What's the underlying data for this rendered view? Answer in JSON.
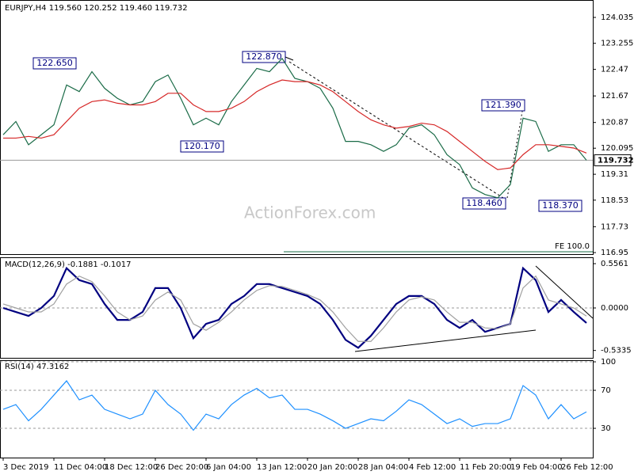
{
  "chart_data": [
    {
      "type": "line",
      "title": "EURJPY,H4  119.560 120.252 119.460 119.732",
      "x": [
        0,
        1,
        2,
        3,
        4,
        5,
        6,
        7,
        8,
        9,
        10,
        11,
        12,
        13,
        14,
        15,
        16,
        17,
        18,
        19,
        20,
        21,
        22,
        23,
        24,
        25,
        26,
        27,
        28,
        29,
        30,
        31,
        32,
        33,
        34,
        35,
        36,
        37,
        38,
        39,
        40,
        41,
        42,
        43,
        44,
        45,
        46
      ],
      "xlim": [
        -0.25,
        46.5
      ],
      "xticks": [
        {
          "value": 0,
          "label": "3 Dec 2019"
        },
        {
          "value": 4,
          "label": "11 Dec 04:00"
        },
        {
          "value": 8,
          "label": "18 Dec 12:00"
        },
        {
          "value": 12,
          "label": "26 Dec 20:00"
        },
        {
          "value": 16,
          "label": "6 Jan 04:00"
        },
        {
          "value": 20,
          "label": "13 Jan 12:00"
        },
        {
          "value": 24,
          "label": "20 Jan 20:00"
        },
        {
          "value": 28,
          "label": "28 Jan 04:00"
        },
        {
          "value": 32,
          "label": "4 Feb 12:00"
        },
        {
          "value": 36,
          "label": "11 Feb 20:00"
        },
        {
          "value": 40,
          "label": "19 Feb 04:00"
        },
        {
          "value": 44,
          "label": "26 Feb 12:00"
        }
      ],
      "ylim": [
        116.88,
        124.56
      ],
      "yticks": [
        124.035,
        123.255,
        122.47,
        121.67,
        120.87,
        120.095,
        119.31,
        118.53,
        117.73,
        116.95
      ],
      "grid": false,
      "series": [
        {
          "color": "#1a6b47",
          "values": [
            120.5,
            120.9,
            120.2,
            120.5,
            120.8,
            122.0,
            121.8,
            122.4,
            121.9,
            121.6,
            121.4,
            121.5,
            122.1,
            122.3,
            121.6,
            120.8,
            121.0,
            120.8,
            121.5,
            122.0,
            122.5,
            122.4,
            122.8,
            122.2,
            122.1,
            121.9,
            121.3,
            120.3,
            120.3,
            120.2,
            120.0,
            120.2,
            120.7,
            120.8,
            120.5,
            119.9,
            119.6,
            118.9,
            118.7,
            118.6,
            119.0,
            121.0,
            120.9,
            120.0,
            120.2,
            120.2,
            119.732
          ]
        },
        {
          "color": "#d62828",
          "values": [
            120.4,
            120.4,
            120.45,
            120.4,
            120.5,
            120.9,
            121.3,
            121.5,
            121.55,
            121.45,
            121.4,
            121.4,
            121.5,
            121.75,
            121.75,
            121.4,
            121.2,
            121.2,
            121.3,
            121.5,
            121.8,
            122.0,
            122.15,
            122.1,
            122.1,
            122.0,
            121.8,
            121.5,
            121.2,
            120.95,
            120.8,
            120.7,
            120.75,
            120.85,
            120.8,
            120.6,
            120.3,
            120.0,
            119.7,
            119.45,
            119.5,
            119.9,
            120.2,
            120.2,
            120.15,
            120.1,
            119.95
          ]
        }
      ],
      "last_price": 119.732,
      "last_price_label": "119.732",
      "annotations": [
        "122.650",
        "122.870",
        "120.170",
        "121.390",
        "118.460",
        "118.370"
      ],
      "level_label": "FE 100.0",
      "watermark": "ActionForex.com"
    },
    {
      "type": "line",
      "title": "MACD(12,26,9) -0.1881 -0.1017",
      "ylim": [
        -0.626,
        0.636
      ],
      "yticks": [
        0.5561,
        {
          "value": 0,
          "label": "0.0000"
        },
        -0.5335
      ],
      "zero_line": true,
      "series": [
        {
          "color": "#000080",
          "values": [
            0.0,
            -0.05,
            -0.1,
            0.0,
            0.15,
            0.5,
            0.35,
            0.3,
            0.05,
            -0.15,
            -0.15,
            -0.05,
            0.25,
            0.25,
            0.0,
            -0.38,
            -0.2,
            -0.15,
            0.05,
            0.15,
            0.3,
            0.3,
            0.25,
            0.2,
            0.15,
            0.05,
            -0.15,
            -0.4,
            -0.5,
            -0.35,
            -0.15,
            0.05,
            0.15,
            0.15,
            0.05,
            -0.15,
            -0.25,
            -0.15,
            -0.3,
            -0.25,
            -0.2,
            0.5,
            0.35,
            -0.05,
            0.1,
            -0.05,
            -0.1881
          ]
        },
        {
          "color": "#a0a0a0",
          "values": [
            0.05,
            0.0,
            -0.05,
            -0.05,
            0.05,
            0.3,
            0.4,
            0.33,
            0.15,
            -0.05,
            -0.15,
            -0.1,
            0.1,
            0.2,
            0.1,
            -0.2,
            -0.28,
            -0.18,
            -0.05,
            0.1,
            0.22,
            0.28,
            0.27,
            0.22,
            0.17,
            0.1,
            -0.05,
            -0.25,
            -0.42,
            -0.42,
            -0.25,
            -0.05,
            0.1,
            0.14,
            0.1,
            -0.05,
            -0.18,
            -0.18,
            -0.25,
            -0.26,
            -0.2,
            0.25,
            0.4,
            0.1,
            0.05,
            0.0,
            -0.1017
          ]
        }
      ]
    },
    {
      "type": "line",
      "title": "RSI(14) 47.3162",
      "ylim": [
        -0.8,
        101.7
      ],
      "yticks": [
        100,
        70,
        30
      ],
      "grid": true,
      "series": [
        {
          "color": "#1e90ff",
          "values": [
            50,
            55,
            38,
            50,
            65,
            80,
            60,
            65,
            50,
            45,
            40,
            45,
            70,
            55,
            45,
            28,
            45,
            40,
            55,
            65,
            72,
            62,
            65,
            50,
            50,
            45,
            38,
            30,
            35,
            40,
            38,
            48,
            60,
            55,
            45,
            35,
            40,
            32,
            35,
            35,
            40,
            75,
            65,
            40,
            55,
            40,
            47.3162
          ]
        }
      ]
    }
  ]
}
